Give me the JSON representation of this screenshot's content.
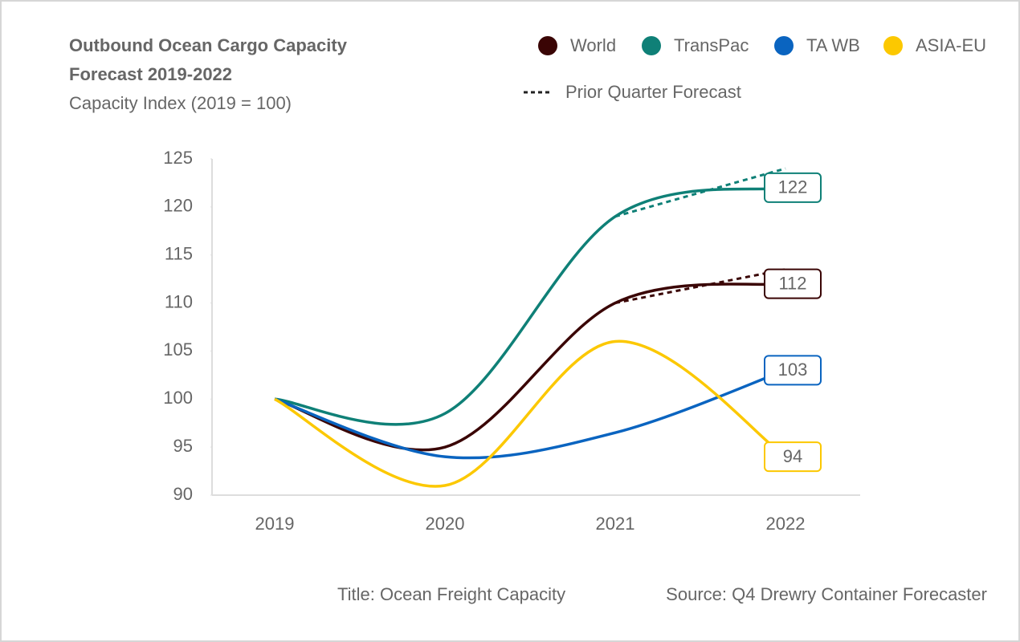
{
  "chart_data": {
    "type": "line",
    "title": [
      "Outbound Ocean Cargo Capacity",
      "Forecast 2019-2022"
    ],
    "subtitle": "Capacity Index (2019 = 100)",
    "categories": [
      "2019",
      "2020",
      "2021",
      "2022"
    ],
    "ylim": [
      90,
      125
    ],
    "yticks": [
      90,
      95,
      100,
      105,
      110,
      115,
      120,
      125
    ],
    "forecast_legend": "Prior Quarter Forecast",
    "series": [
      {
        "name": "World",
        "color": "#3a0505",
        "values": [
          100,
          95,
          110,
          112
        ],
        "forecast": [
          null,
          null,
          110,
          113.5
        ]
      },
      {
        "name": "TransPac",
        "color": "#0f8077",
        "values": [
          100,
          98.5,
          119,
          122
        ],
        "forecast": [
          null,
          null,
          119,
          124
        ]
      },
      {
        "name": "TA WB",
        "color": "#0a64c0",
        "values": [
          100,
          94,
          96.5,
          103
        ]
      },
      {
        "name": "ASIA-EU",
        "color": "#fcc800",
        "values": [
          100,
          91,
          106,
          94
        ]
      }
    ],
    "footer_title": "Title: Ocean Freight Capacity",
    "source": "Source: Q4 Drewry Container Forecaster"
  }
}
